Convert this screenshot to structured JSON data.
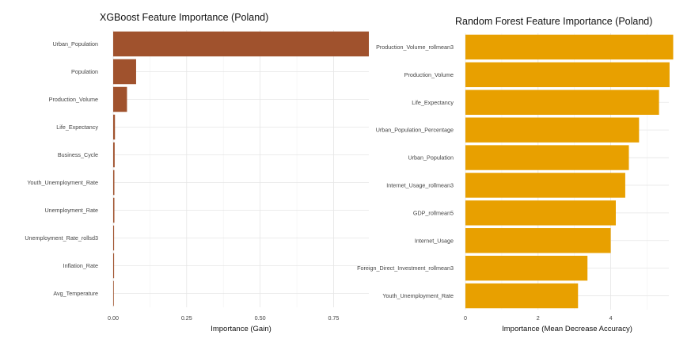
{
  "chart_data": [
    {
      "type": "bar",
      "orientation": "horizontal",
      "title": "XGBoost Feature Importance (Poland)",
      "xlabel": "Importance (Gain)",
      "ylabel": "",
      "color": "#a0522d",
      "xlim": [
        0,
        0.87
      ],
      "xticks": [
        0,
        0.25,
        0.5,
        0.75
      ],
      "xtick_labels": [
        "0.00",
        "0.25",
        "0.50",
        "0.75"
      ],
      "grid": true,
      "categories": [
        "Urban_Population",
        "Population",
        "Production_Volume",
        "Life_Expectancy",
        "Business_Cycle",
        "Youth_Unemployment_Rate",
        "Unemployment_Rate",
        "Unemployment_Rate_rollsd3",
        "Inflation_Rate",
        "Avg_Temperature"
      ],
      "values": [
        0.87,
        0.078,
        0.047,
        0.006,
        0.005,
        0.004,
        0.004,
        0.003,
        0.003,
        0.002
      ]
    },
    {
      "type": "bar",
      "orientation": "horizontal",
      "title": "Random Forest Feature Importance (Poland)",
      "xlabel": "Importance (Mean Decrease Accuracy)",
      "ylabel": "",
      "color": "#e8a000",
      "xlim": [
        0,
        5.6
      ],
      "xticks": [
        0,
        2,
        4
      ],
      "xtick_labels": [
        "0",
        "2",
        "4"
      ],
      "grid": true,
      "categories": [
        "Production_Volume_rollmean3",
        "Production_Volume",
        "Life_Expectancy",
        "Urban_Population_Percentage",
        "Urban_Population",
        "Internet_Usage_rollmean3",
        "GDP_rollmean5",
        "Internet_Usage",
        "Foreign_Direct_Investment_rollmean3",
        "Youth_Unemployment_Rate"
      ],
      "values": [
        5.72,
        5.62,
        5.33,
        4.78,
        4.5,
        4.4,
        4.14,
        4.0,
        3.36,
        3.1
      ]
    }
  ]
}
